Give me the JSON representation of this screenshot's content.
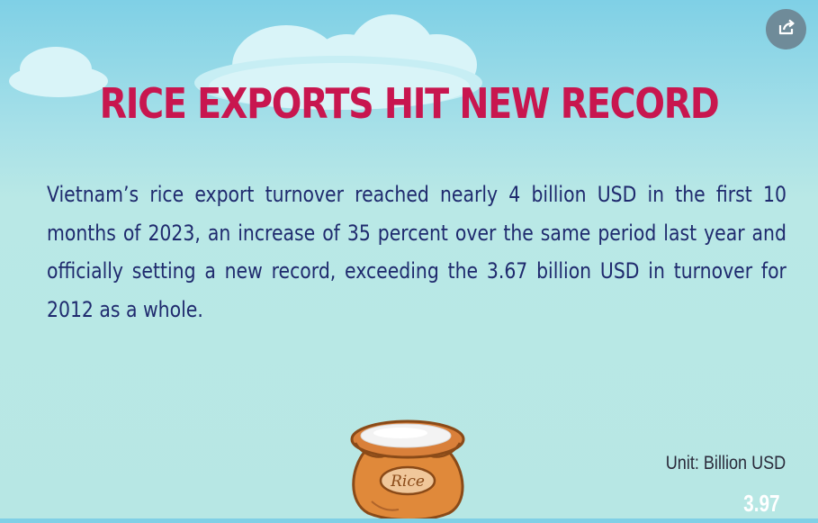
{
  "header": {
    "title": "RICE EXPORTS HIT NEW RECORD"
  },
  "body": {
    "paragraph": "Vietnam’s rice export turnover reached nearly 4 billion USD in the first 10 months of 2023, an increase of 35 percent over the same period last year and officially setting a new record, exceeding the 3.67 billion USD in turnover for 2012 as a whole."
  },
  "chart": {
    "unit_label": "Unit: Billion USD",
    "value_label": "3.97",
    "bag_label": "Rice"
  },
  "icons": {
    "share": "share-icon",
    "rice_bag": "rice-bag-icon"
  },
  "colors": {
    "title": "#c8164f",
    "body_text": "#1f2a6e",
    "unit_text": "#2a2a3a",
    "value_text": "#ffffff",
    "share_button": "#6f8b99"
  }
}
